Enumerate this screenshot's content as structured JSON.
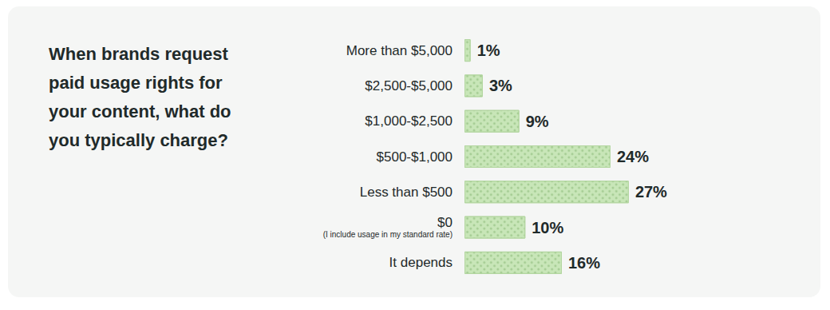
{
  "chart_data": {
    "type": "bar",
    "title": "When brands request paid usage rights for your content, what do you typically charge?",
    "categories": [
      "More than $5,000",
      "$2,500-$5,000",
      "$1,000-$2,500",
      "$500-$1,000",
      "Less than $500",
      "$0\n(I include usage in my standard rate)",
      "It depends"
    ],
    "values": [
      1,
      3,
      9,
      24,
      27,
      10,
      16
    ],
    "value_labels": [
      "1%",
      "3%",
      "9%",
      "24%",
      "27%",
      "10%",
      "16%"
    ],
    "color": "#c8e6b8",
    "orientation": "horizontal",
    "xlim": [
      0,
      40
    ],
    "data_labels": true,
    "tick_labels": "y",
    "grid": false
  }
}
